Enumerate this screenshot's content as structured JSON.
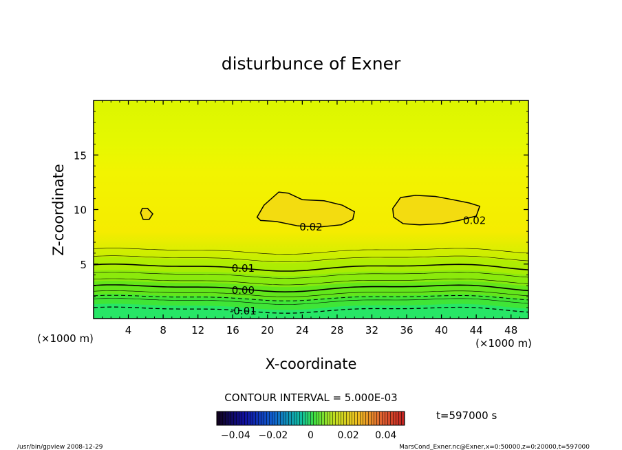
{
  "chart_data": {
    "type": "contour",
    "title": "disturbunce of Exner",
    "xlabel": "X-coordinate",
    "ylabel": "Z-coordinate",
    "x_unit_left": "(×1000 m)",
    "x_unit_right": "(×1000 m)",
    "xlim": [
      0,
      50
    ],
    "ylim": [
      0,
      20
    ],
    "xticks": [
      4,
      8,
      12,
      16,
      20,
      24,
      28,
      32,
      36,
      40,
      44,
      48
    ],
    "yticks": [
      5,
      10,
      15
    ],
    "contour_labels": [
      {
        "text": "0.02",
        "x": 25,
        "z": 8.4
      },
      {
        "text": "0.02",
        "x": 43.8,
        "z": 9.0
      },
      {
        "text": "0.01",
        "x": 17.2,
        "z": 4.6
      },
      {
        "text": "0.00",
        "x": 17.2,
        "z": 2.6
      },
      {
        "text": "-0.01",
        "x": 17.2,
        "z": 0.7
      }
    ],
    "contour_interval_text": "CONTOUR INTERVAL = 5.000E-03",
    "colorbar_labels": [
      "−0.04",
      "−0.02",
      "0",
      "0.02",
      "0.04"
    ],
    "colorbar_values": [
      -0.04,
      -0.02,
      0,
      0.02,
      0.04
    ],
    "colorbar_range": [
      -0.05,
      0.05
    ],
    "time_text": "t=597000 s"
  },
  "footer": {
    "left": "/usr/bin/gpview   2008-12-29",
    "right": "MarsCond_Exner.nc@Exner,x=0:50000,z=0:20000,t=597000"
  },
  "colors": {
    "high": "#f5f000",
    "peak": "#f2d418",
    "mid": "#d6f200",
    "low": "#18e86a",
    "bottom": "#12ecb0"
  }
}
